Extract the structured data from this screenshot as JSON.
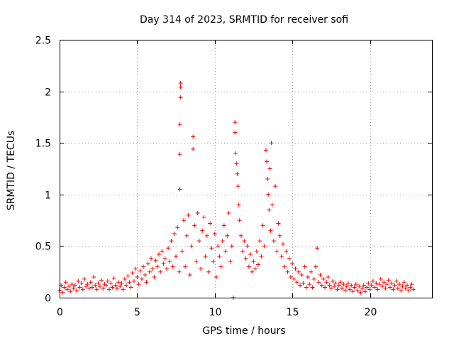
{
  "chart_data": {
    "type": "scatter",
    "title": "Day 314 of 2023, SRMTID for receiver sofi",
    "xlabel": "GPS time / hours",
    "ylabel": "SRMTID / TECUs",
    "xlim": [
      0,
      24
    ],
    "ylim": [
      0,
      2.5
    ],
    "xticks": [
      0,
      5,
      10,
      15,
      20
    ],
    "xtick_labels": [
      "0",
      "5",
      "10",
      "15",
      "20"
    ],
    "yticks": [
      0,
      0.5,
      1,
      1.5,
      2,
      2.5
    ],
    "ytick_labels": [
      "0",
      "0.5",
      "1",
      "1.5",
      "2",
      "2.5"
    ],
    "grid": true,
    "marker": "+",
    "color": "#ff0000",
    "series": [
      {
        "name": "SRMTID",
        "points": [
          [
            0.0,
            0.07
          ],
          [
            0.1,
            0.12
          ],
          [
            0.2,
            0.05
          ],
          [
            0.3,
            0.1
          ],
          [
            0.4,
            0.15
          ],
          [
            0.5,
            0.08
          ],
          [
            0.6,
            0.11
          ],
          [
            0.7,
            0.06
          ],
          [
            0.8,
            0.13
          ],
          [
            0.9,
            0.09
          ],
          [
            1.0,
            0.12
          ],
          [
            1.1,
            0.07
          ],
          [
            1.2,
            0.16
          ],
          [
            1.3,
            0.1
          ],
          [
            1.4,
            0.14
          ],
          [
            1.5,
            0.08
          ],
          [
            1.6,
            0.18
          ],
          [
            1.7,
            0.11
          ],
          [
            1.8,
            0.13
          ],
          [
            1.9,
            0.09
          ],
          [
            2.0,
            0.15
          ],
          [
            2.1,
            0.1
          ],
          [
            2.2,
            0.2
          ],
          [
            2.3,
            0.12
          ],
          [
            2.4,
            0.08
          ],
          [
            2.5,
            0.14
          ],
          [
            2.6,
            0.11
          ],
          [
            2.7,
            0.17
          ],
          [
            2.8,
            0.09
          ],
          [
            2.9,
            0.13
          ],
          [
            3.0,
            0.12
          ],
          [
            3.1,
            0.16
          ],
          [
            3.2,
            0.08
          ],
          [
            3.3,
            0.14
          ],
          [
            3.4,
            0.1
          ],
          [
            3.5,
            0.19
          ],
          [
            3.6,
            0.12
          ],
          [
            3.7,
            0.09
          ],
          [
            3.8,
            0.15
          ],
          [
            3.9,
            0.11
          ],
          [
            4.0,
            0.14
          ],
          [
            4.1,
            0.08
          ],
          [
            4.2,
            0.18
          ],
          [
            4.3,
            0.12
          ],
          [
            4.4,
            0.21
          ],
          [
            4.5,
            0.15
          ],
          [
            4.6,
            0.1
          ],
          [
            4.7,
            0.24
          ],
          [
            4.8,
            0.16
          ],
          [
            4.9,
            0.28
          ],
          [
            5.0,
            0.2
          ],
          [
            5.1,
            0.13
          ],
          [
            5.2,
            0.26
          ],
          [
            5.3,
            0.18
          ],
          [
            5.4,
            0.3
          ],
          [
            5.5,
            0.22
          ],
          [
            5.6,
            0.15
          ],
          [
            5.7,
            0.33
          ],
          [
            5.8,
            0.25
          ],
          [
            5.9,
            0.38
          ],
          [
            6.0,
            0.28
          ],
          [
            6.1,
            0.2
          ],
          [
            6.2,
            0.36
          ],
          [
            6.3,
            0.3
          ],
          [
            6.4,
            0.42
          ],
          [
            6.5,
            0.25
          ],
          [
            6.6,
            0.45
          ],
          [
            6.7,
            0.33
          ],
          [
            6.8,
            0.38
          ],
          [
            6.9,
            0.28
          ],
          [
            7.0,
            0.48
          ],
          [
            7.1,
            0.35
          ],
          [
            7.2,
            0.55
          ],
          [
            7.3,
            0.3
          ],
          [
            7.4,
            0.62
          ],
          [
            7.5,
            0.4
          ],
          [
            7.6,
            0.68
          ],
          [
            7.7,
            0.25
          ],
          [
            7.75,
            1.05
          ],
          [
            7.75,
            1.39
          ],
          [
            7.75,
            1.68
          ],
          [
            7.8,
            1.94
          ],
          [
            7.8,
            2.04
          ],
          [
            7.8,
            2.08
          ],
          [
            7.9,
            0.45
          ],
          [
            8.0,
            0.75
          ],
          [
            8.1,
            0.3
          ],
          [
            8.2,
            0.6
          ],
          [
            8.3,
            0.8
          ],
          [
            8.4,
            0.22
          ],
          [
            8.5,
            0.5
          ],
          [
            8.6,
            1.44
          ],
          [
            8.6,
            1.56
          ],
          [
            8.7,
            0.7
          ],
          [
            8.8,
            0.35
          ],
          [
            8.9,
            0.82
          ],
          [
            9.0,
            0.55
          ],
          [
            9.1,
            0.28
          ],
          [
            9.2,
            0.65
          ],
          [
            9.3,
            0.78
          ],
          [
            9.4,
            0.4
          ],
          [
            9.5,
            0.6
          ],
          [
            9.6,
            0.25
          ],
          [
            9.7,
            0.72
          ],
          [
            9.8,
            0.48
          ],
          [
            9.9,
            0.35
          ],
          [
            10.0,
            0.62
          ],
          [
            10.1,
            0.2
          ],
          [
            10.2,
            0.5
          ],
          [
            10.3,
            0.4
          ],
          [
            10.4,
            0.3
          ],
          [
            10.5,
            0.55
          ],
          [
            10.6,
            0.7
          ],
          [
            10.7,
            0.45
          ],
          [
            10.8,
            0.6
          ],
          [
            10.9,
            0.82
          ],
          [
            11.0,
            0.35
          ],
          [
            11.1,
            0.5
          ],
          [
            11.2,
            0.0
          ],
          [
            11.3,
            1.7
          ],
          [
            11.3,
            1.6
          ],
          [
            11.35,
            1.4
          ],
          [
            11.4,
            1.3
          ],
          [
            11.45,
            1.2
          ],
          [
            11.5,
            1.08
          ],
          [
            11.55,
            0.9
          ],
          [
            11.6,
            0.75
          ],
          [
            11.7,
            0.6
          ],
          [
            11.8,
            0.45
          ],
          [
            11.9,
            0.55
          ],
          [
            12.0,
            0.38
          ],
          [
            12.1,
            0.5
          ],
          [
            12.2,
            0.3
          ],
          [
            12.3,
            0.42
          ],
          [
            12.4,
            0.25
          ],
          [
            12.5,
            0.35
          ],
          [
            12.6,
            0.28
          ],
          [
            12.7,
            0.45
          ],
          [
            12.8,
            0.32
          ],
          [
            12.9,
            0.55
          ],
          [
            13.0,
            0.4
          ],
          [
            13.1,
            0.7
          ],
          [
            13.2,
            0.5
          ],
          [
            13.3,
            1.43
          ],
          [
            13.35,
            1.32
          ],
          [
            13.4,
            1.15
          ],
          [
            13.45,
            1.0
          ],
          [
            13.5,
            0.85
          ],
          [
            13.55,
            1.25
          ],
          [
            13.6,
            0.65
          ],
          [
            13.65,
            1.5
          ],
          [
            13.7,
            0.9
          ],
          [
            13.8,
            0.55
          ],
          [
            13.9,
            1.08
          ],
          [
            14.0,
            0.45
          ],
          [
            14.1,
            0.72
          ],
          [
            14.2,
            0.6
          ],
          [
            14.3,
            0.4
          ],
          [
            14.4,
            0.52
          ],
          [
            14.5,
            0.3
          ],
          [
            14.6,
            0.45
          ],
          [
            14.7,
            0.25
          ],
          [
            14.8,
            0.38
          ],
          [
            14.9,
            0.2
          ],
          [
            15.0,
            0.33
          ],
          [
            15.1,
            0.18
          ],
          [
            15.2,
            0.28
          ],
          [
            15.3,
            0.15
          ],
          [
            15.4,
            0.25
          ],
          [
            15.5,
            0.12
          ],
          [
            15.6,
            0.22
          ],
          [
            15.7,
            0.14
          ],
          [
            15.8,
            0.3
          ],
          [
            15.9,
            0.1
          ],
          [
            16.0,
            0.2
          ],
          [
            16.1,
            0.13
          ],
          [
            16.2,
            0.25
          ],
          [
            16.3,
            0.1
          ],
          [
            16.4,
            0.18
          ],
          [
            16.5,
            0.3
          ],
          [
            16.6,
            0.48
          ],
          [
            16.7,
            0.15
          ],
          [
            16.8,
            0.22
          ],
          [
            16.9,
            0.12
          ],
          [
            17.0,
            0.18
          ],
          [
            17.1,
            0.1
          ],
          [
            17.2,
            0.15
          ],
          [
            17.3,
            0.2
          ],
          [
            17.4,
            0.12
          ],
          [
            17.5,
            0.09
          ],
          [
            17.6,
            0.16
          ],
          [
            17.7,
            0.11
          ],
          [
            17.8,
            0.14
          ],
          [
            17.9,
            0.08
          ],
          [
            18.0,
            0.12
          ],
          [
            18.1,
            0.15
          ],
          [
            18.2,
            0.09
          ],
          [
            18.3,
            0.13
          ],
          [
            18.4,
            0.07
          ],
          [
            18.5,
            0.11
          ],
          [
            18.6,
            0.14
          ],
          [
            18.7,
            0.08
          ],
          [
            18.8,
            0.12
          ],
          [
            18.9,
            0.06
          ],
          [
            19.0,
            0.1
          ],
          [
            19.1,
            0.13
          ],
          [
            19.2,
            0.07
          ],
          [
            19.3,
            0.11
          ],
          [
            19.4,
            0.05
          ],
          [
            19.5,
            0.09
          ],
          [
            19.6,
            0.12
          ],
          [
            19.7,
            0.06
          ],
          [
            19.8,
            0.1
          ],
          [
            19.9,
            0.14
          ],
          [
            20.0,
            0.08
          ],
          [
            20.1,
            0.12
          ],
          [
            20.2,
            0.16
          ],
          [
            20.3,
            0.1
          ],
          [
            20.4,
            0.14
          ],
          [
            20.5,
            0.08
          ],
          [
            20.6,
            0.13
          ],
          [
            20.7,
            0.18
          ],
          [
            20.8,
            0.11
          ],
          [
            20.9,
            0.15
          ],
          [
            21.0,
            0.09
          ],
          [
            21.1,
            0.13
          ],
          [
            21.2,
            0.17
          ],
          [
            21.3,
            0.1
          ],
          [
            21.4,
            0.14
          ],
          [
            21.5,
            0.08
          ],
          [
            21.6,
            0.12
          ],
          [
            21.7,
            0.16
          ],
          [
            21.8,
            0.09
          ],
          [
            21.9,
            0.13
          ],
          [
            22.0,
            0.07
          ],
          [
            22.1,
            0.11
          ],
          [
            22.2,
            0.15
          ],
          [
            22.3,
            0.09
          ],
          [
            22.4,
            0.12
          ],
          [
            22.5,
            0.07
          ],
          [
            22.6,
            0.1
          ],
          [
            22.7,
            0.13
          ],
          [
            22.8,
            0.08
          ]
        ]
      }
    ]
  }
}
